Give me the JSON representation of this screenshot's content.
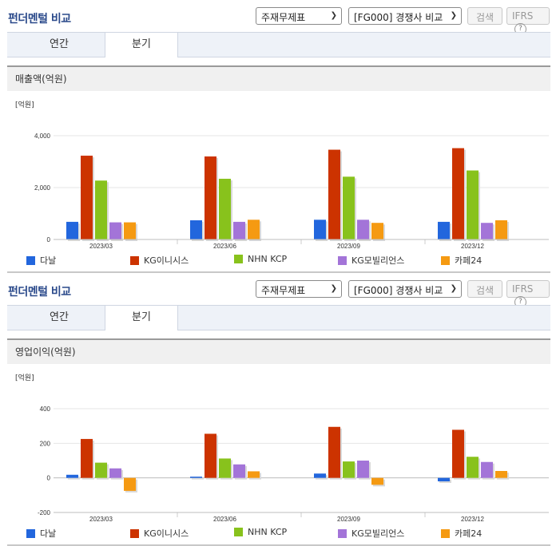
{
  "panels": [
    {
      "title": "펀더멘털 비교",
      "select1": "주재무제표",
      "select2": "[FG000] 경쟁사 비교",
      "search_label": "검색",
      "ifrs_label": "IFRS",
      "help_icon": "?",
      "tabs": [
        "연간",
        "분기"
      ],
      "active_tab": 1,
      "subtitle": "매출액(억원)",
      "unit": "[억원]"
    },
    {
      "title": "펀더멘털 비교",
      "select1": "주재무제표",
      "select2": "[FG000] 경쟁사 비교",
      "search_label": "검색",
      "ifrs_label": "IFRS",
      "help_icon": "?",
      "tabs": [
        "연간",
        "분기"
      ],
      "active_tab": 1,
      "subtitle": "영업이익(억원)",
      "unit": "[억원]"
    }
  ],
  "colors": {
    "다날": "#2266dd",
    "KG이니시스": "#cc3300",
    "NHN KCP": "#88c21c",
    "KG모빌리언스": "#a374d8",
    "카페24": "#f59a12"
  },
  "chart_data": [
    {
      "type": "bar",
      "title": "매출액(억원)",
      "ylabel": "[억원]",
      "categories": [
        "2023/03",
        "2023/06",
        "2023/09",
        "2023/12"
      ],
      "ylim": [
        0,
        4000
      ],
      "yticks": [
        0,
        2000,
        4000
      ],
      "ytick_labels": [
        "0",
        "2,000",
        "4,000"
      ],
      "grid": true,
      "legend": "bottom",
      "series": [
        {
          "name": "다날",
          "values": [
            680,
            740,
            760,
            680
          ]
        },
        {
          "name": "KG이니시스",
          "values": [
            3230,
            3200,
            3460,
            3520
          ]
        },
        {
          "name": "NHN KCP",
          "values": [
            2270,
            2340,
            2420,
            2660
          ]
        },
        {
          "name": "KG모빌리언스",
          "values": [
            660,
            680,
            760,
            640
          ]
        },
        {
          "name": "카페24",
          "values": [
            660,
            760,
            640,
            740
          ]
        }
      ]
    },
    {
      "type": "bar",
      "title": "영업이익(억원)",
      "ylabel": "[억원]",
      "categories": [
        "2023/03",
        "2023/06",
        "2023/09",
        "2023/12"
      ],
      "ylim": [
        -200,
        400
      ],
      "yticks": [
        -200,
        0,
        200,
        400
      ],
      "ytick_labels": [
        "-200",
        "0",
        "200",
        "400"
      ],
      "grid": true,
      "legend": "bottom",
      "series": [
        {
          "name": "다날",
          "values": [
            18,
            7,
            25,
            -20
          ]
        },
        {
          "name": "KG이니시스",
          "values": [
            225,
            255,
            295,
            278
          ]
        },
        {
          "name": "NHN KCP",
          "values": [
            88,
            112,
            95,
            122
          ]
        },
        {
          "name": "KG모빌리언스",
          "values": [
            55,
            78,
            100,
            92
          ]
        },
        {
          "name": "카페24",
          "values": [
            -75,
            38,
            -40,
            40
          ]
        }
      ]
    }
  ]
}
